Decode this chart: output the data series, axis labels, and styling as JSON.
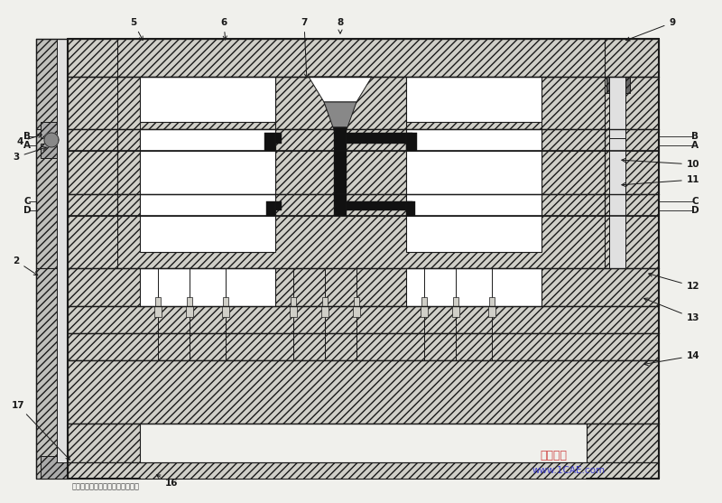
{
  "bg_color": "#f0f0ec",
  "line_color": "#1a1a1a",
  "hatch_fc": "#d0cfc8",
  "white_fc": "#ffffff",
  "black_fc": "#111111",
  "gray_fc": "#999999",
  "watermark1": "仿真在线",
  "watermark2": "www.1CAE.com",
  "watermark_color1": "#cc3333",
  "watermark_color2": "#3333cc",
  "bottom_text": "注：仿腾模具设计数控加工数据库",
  "figsize": [
    8.0,
    5.57
  ],
  "dpi": 100
}
